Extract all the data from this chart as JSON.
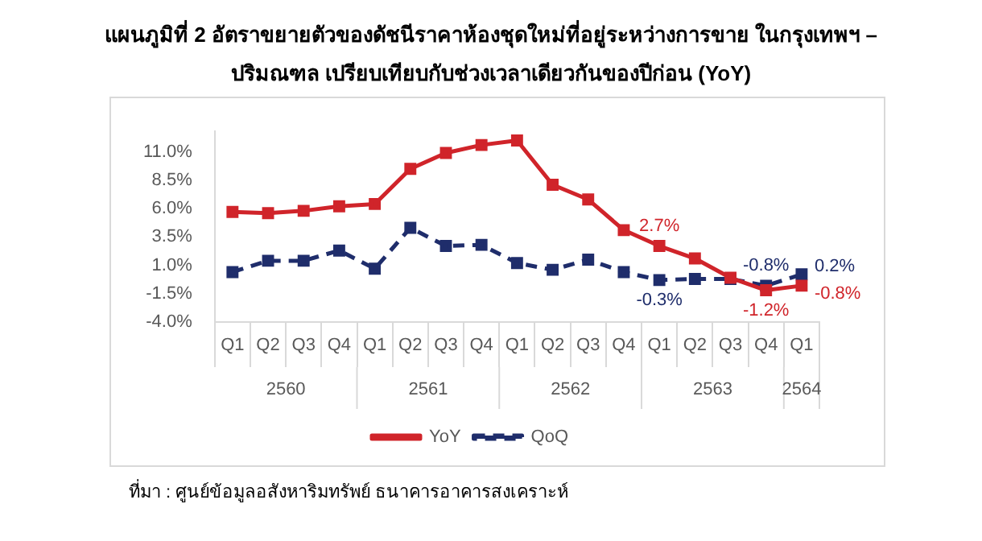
{
  "chart_data": {
    "type": "line",
    "title": "แผนภูมิที่ 2 อัตราขยายตัวของดัชนีราคาห้องชุดใหม่ที่อยู่ระหว่างการขาย ในกรุงเทพฯ – ปริมณฑล เปรียบเทียบกับช่วงเวลาเดียวกันของปีก่อน (YoY)",
    "categories": [
      "Q1",
      "Q2",
      "Q3",
      "Q4",
      "Q1",
      "Q2",
      "Q3",
      "Q4",
      "Q1",
      "Q2",
      "Q3",
      "Q4",
      "Q1",
      "Q2",
      "Q3",
      "Q4",
      "Q1"
    ],
    "series": [
      {
        "name": "YoY",
        "color": "#d0242a",
        "line_style": "solid",
        "values": [
          5.7,
          5.6,
          5.8,
          6.2,
          6.4,
          9.5,
          10.9,
          11.6,
          12.0,
          8.1,
          6.8,
          4.1,
          2.7,
          1.6,
          -0.1,
          -1.2,
          -0.8
        ],
        "value_labels": [
          null,
          null,
          null,
          null,
          null,
          null,
          null,
          null,
          null,
          null,
          null,
          null,
          "2.7%",
          null,
          null,
          "-1.2%",
          "-0.8%"
        ]
      },
      {
        "name": "QoQ",
        "color": "#1f2d6b",
        "line_style": "dashed",
        "values": [
          0.4,
          1.4,
          1.4,
          2.3,
          0.7,
          4.3,
          2.7,
          2.8,
          1.2,
          0.6,
          1.5,
          0.4,
          -0.3,
          -0.2,
          -0.2,
          -0.8,
          0.2
        ],
        "value_labels": [
          null,
          null,
          null,
          null,
          null,
          null,
          null,
          null,
          null,
          null,
          null,
          null,
          "-0.3%",
          null,
          null,
          "-0.8%",
          "0.2%"
        ]
      }
    ],
    "ylim": [
      -4,
      12.8
    ],
    "yticks": [
      {
        "value": -4,
        "label": "-4.0%"
      },
      {
        "value": -1.5,
        "label": "-1.5%"
      },
      {
        "value": 1,
        "label": "1.0%"
      },
      {
        "value": 3.5,
        "label": "3.5%"
      },
      {
        "value": 6,
        "label": "6.0%"
      },
      {
        "value": 8.5,
        "label": "8.5%"
      },
      {
        "value": 11,
        "label": "11.0%"
      }
    ],
    "marker": "square",
    "grid": false,
    "legend": "bottom",
    "annotations": [
      "2560",
      "2561",
      "2562",
      "2563",
      "2564",
      "ที่มา : ศูนย์ข้อมูลอสังหาริมทรัพย์ ธนาคารอาคารสงเคราะห์"
    ]
  }
}
